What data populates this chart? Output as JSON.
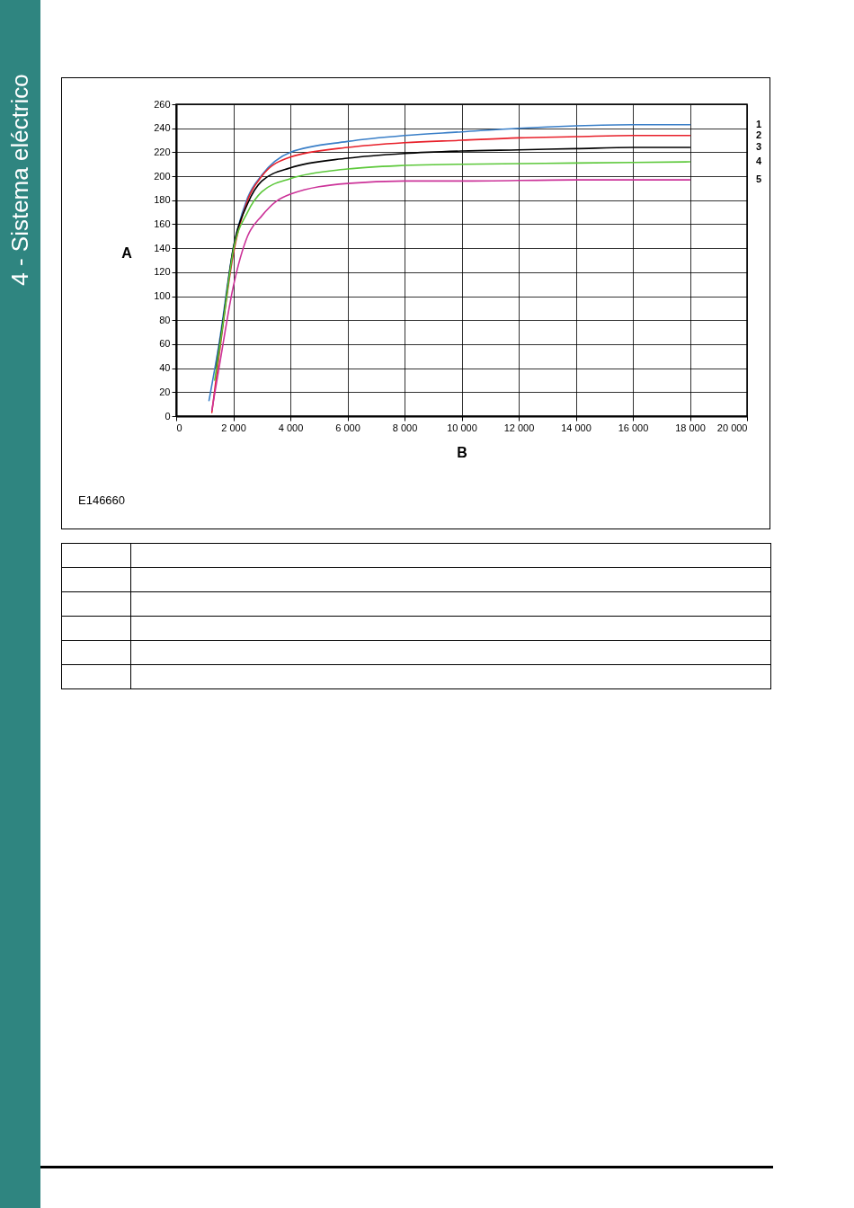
{
  "chart_data": {
    "type": "line",
    "xlabel": "B",
    "ylabel": "A",
    "annotations": [
      "4 - Sistema eléctrico",
      "E146660"
    ],
    "xlim": [
      0,
      20000
    ],
    "ylim": [
      0,
      260
    ],
    "xticks": [
      0,
      {
        "value": 2000,
        "label": "2 000"
      },
      {
        "value": 4000,
        "label": "4 000"
      },
      {
        "value": 6000,
        "label": "6 000"
      },
      {
        "value": 8000,
        "label": "8 000"
      },
      {
        "value": 10000,
        "label": "10 000"
      },
      {
        "value": 12000,
        "label": "12 000"
      },
      {
        "value": 14000,
        "label": "14 000"
      },
      {
        "value": 16000,
        "label": "16 000"
      },
      {
        "value": 18000,
        "label": "18 000"
      },
      {
        "value": 20000,
        "label": "20 000"
      }
    ],
    "yticks": [
      0,
      20,
      40,
      60,
      80,
      100,
      120,
      140,
      160,
      180,
      200,
      220,
      240,
      260
    ],
    "grid": true,
    "line_style": "solid",
    "series": [
      {
        "name": "1",
        "color": "#3a7fc8",
        "x": [
          1150,
          1500,
          2000,
          2500,
          3000,
          4000,
          6000,
          8000,
          10000,
          12000,
          14000,
          16000,
          18000
        ],
        "values": [
          13,
          60,
          140,
          182,
          201,
          220,
          229,
          234,
          237,
          240,
          242,
          243,
          243
        ]
      },
      {
        "name": "2",
        "color": "#e8202a",
        "x": [
          1250,
          1500,
          2000,
          2500,
          3000,
          4000,
          6000,
          8000,
          10000,
          12000,
          14000,
          16000,
          18000
        ],
        "values": [
          3,
          50,
          135,
          180,
          200,
          216,
          224,
          228,
          230,
          232,
          233,
          234,
          234
        ]
      },
      {
        "name": "3",
        "color": "#000000",
        "x": [
          1400,
          1600,
          2000,
          2500,
          3000,
          4000,
          6000,
          8000,
          10000,
          12000,
          14000,
          16000,
          18000
        ],
        "values": [
          40,
          72,
          140,
          177,
          196,
          207,
          215,
          219,
          221,
          222,
          223,
          224,
          224
        ]
      },
      {
        "name": "4",
        "color": "#5cc83a",
        "x": [
          1350,
          1600,
          2000,
          2500,
          3000,
          4000,
          6000,
          8000,
          10000,
          14000,
          18000
        ],
        "values": [
          30,
          70,
          138,
          170,
          187,
          198,
          206,
          209,
          210,
          211,
          212
        ]
      },
      {
        "name": "5",
        "color": "#cc3399",
        "x": [
          1250,
          1500,
          2000,
          2500,
          3000,
          3500,
          4000,
          6000,
          8000,
          10000,
          14000,
          18000
        ],
        "values": [
          5,
          40,
          108,
          150,
          167,
          179,
          185,
          194,
          196,
          196,
          197,
          197
        ]
      }
    ]
  }
}
